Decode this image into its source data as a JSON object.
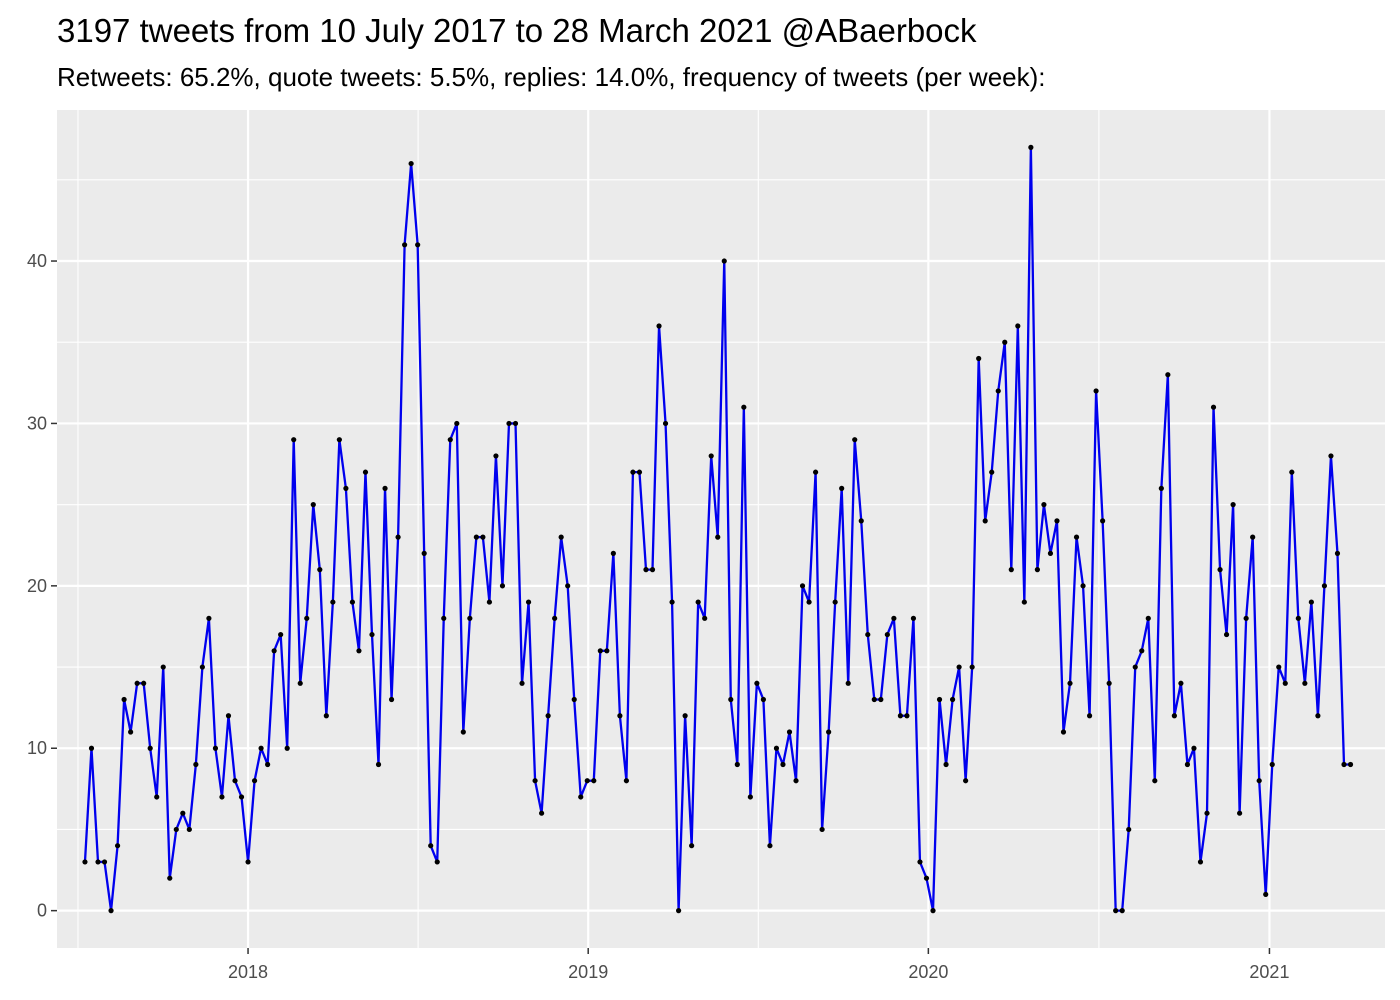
{
  "chart_data": {
    "type": "line",
    "title": "3197 tweets from 10 July 2017 to 28 March 2021 @ABaerbock",
    "subtitle": "Retweets: 65.2%, quote tweets: 5.5%, replies: 14.0%, frequency of tweets (per week):",
    "xlabel": "",
    "ylabel": "",
    "x_start": "2017-07-10",
    "x_step_days": 7,
    "xlim": [
      "2017-06-10",
      "2021-05-05"
    ],
    "ylim": [
      -2.3,
      49.3
    ],
    "x_ticks": [
      {
        "label": "2018",
        "date": "2018-01-01"
      },
      {
        "label": "2019",
        "date": "2019-01-01"
      },
      {
        "label": "2020",
        "date": "2020-01-01"
      },
      {
        "label": "2021",
        "date": "2021-01-01"
      }
    ],
    "y_ticks": [
      0,
      10,
      20,
      30,
      40
    ],
    "grid": true,
    "legend": "none",
    "series": [
      {
        "color": "#0000ee",
        "point_color": "#000000",
        "values": [
          3,
          10,
          3,
          3,
          0,
          4,
          13,
          11,
          14,
          14,
          10,
          7,
          15,
          2,
          5,
          6,
          5,
          9,
          15,
          18,
          10,
          7,
          12,
          8,
          7,
          3,
          8,
          10,
          9,
          16,
          17,
          10,
          29,
          14,
          18,
          25,
          21,
          12,
          19,
          29,
          26,
          19,
          16,
          27,
          17,
          9,
          26,
          13,
          23,
          41,
          46,
          41,
          22,
          4,
          3,
          18,
          29,
          30,
          11,
          18,
          23,
          23,
          19,
          28,
          20,
          30,
          30,
          14,
          19,
          8,
          6,
          12,
          18,
          23,
          20,
          13,
          7,
          8,
          8,
          16,
          16,
          22,
          12,
          8,
          27,
          27,
          21,
          21,
          36,
          30,
          19,
          0,
          12,
          4,
          19,
          18,
          28,
          23,
          40,
          13,
          9,
          31,
          7,
          14,
          13,
          4,
          10,
          9,
          11,
          8,
          20,
          19,
          27,
          5,
          11,
          19,
          26,
          14,
          29,
          24,
          17,
          13,
          13,
          17,
          18,
          12,
          12,
          18,
          3,
          2,
          0,
          13,
          9,
          13,
          15,
          8,
          15,
          34,
          24,
          27,
          32,
          35,
          21,
          36,
          19,
          47,
          21,
          25,
          22,
          24,
          11,
          14,
          23,
          20,
          12,
          32,
          24,
          14,
          0,
          0,
          5,
          15,
          16,
          18,
          8,
          26,
          33,
          12,
          14,
          9,
          10,
          3,
          6,
          31,
          21,
          17,
          25,
          6,
          18,
          23,
          8,
          1,
          9,
          15,
          14,
          27,
          18,
          14,
          19,
          12,
          20,
          28,
          22,
          9,
          9
        ]
      }
    ]
  }
}
